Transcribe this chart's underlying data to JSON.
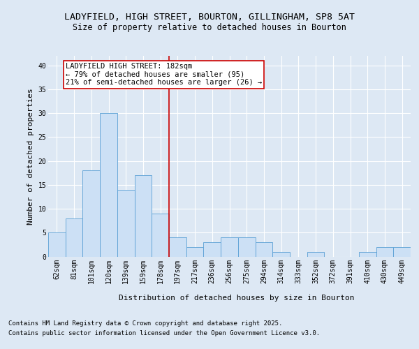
{
  "title": "LADYFIELD, HIGH STREET, BOURTON, GILLINGHAM, SP8 5AT",
  "subtitle": "Size of property relative to detached houses in Bourton",
  "xlabel": "Distribution of detached houses by size in Bourton",
  "ylabel": "Number of detached properties",
  "categories": [
    "62sqm",
    "81sqm",
    "101sqm",
    "120sqm",
    "139sqm",
    "159sqm",
    "178sqm",
    "197sqm",
    "217sqm",
    "236sqm",
    "256sqm",
    "275sqm",
    "294sqm",
    "314sqm",
    "333sqm",
    "352sqm",
    "372sqm",
    "391sqm",
    "410sqm",
    "430sqm",
    "449sqm"
  ],
  "values": [
    5,
    8,
    18,
    30,
    14,
    17,
    9,
    4,
    2,
    3,
    4,
    4,
    3,
    1,
    0,
    1,
    0,
    0,
    1,
    2,
    2
  ],
  "bar_color": "#cce0f5",
  "bar_edge_color": "#5a9fd4",
  "vline_x": 6.5,
  "vline_color": "#cc0000",
  "annotation_title": "LADYFIELD HIGH STREET: 182sqm",
  "annotation_line1": "← 79% of detached houses are smaller (95)",
  "annotation_line2": "21% of semi-detached houses are larger (26) →",
  "annotation_box_color": "#ffffff",
  "annotation_box_edge": "#cc0000",
  "ylim": [
    0,
    42
  ],
  "yticks": [
    0,
    5,
    10,
    15,
    20,
    25,
    30,
    35,
    40
  ],
  "background_color": "#dde8f4",
  "plot_bg_color": "#dde8f4",
  "footer_line1": "Contains HM Land Registry data © Crown copyright and database right 2025.",
  "footer_line2": "Contains public sector information licensed under the Open Government Licence v3.0.",
  "title_fontsize": 9.5,
  "subtitle_fontsize": 8.5,
  "tick_fontsize": 7,
  "label_fontsize": 8,
  "annotation_fontsize": 7.5,
  "footer_fontsize": 6.5
}
